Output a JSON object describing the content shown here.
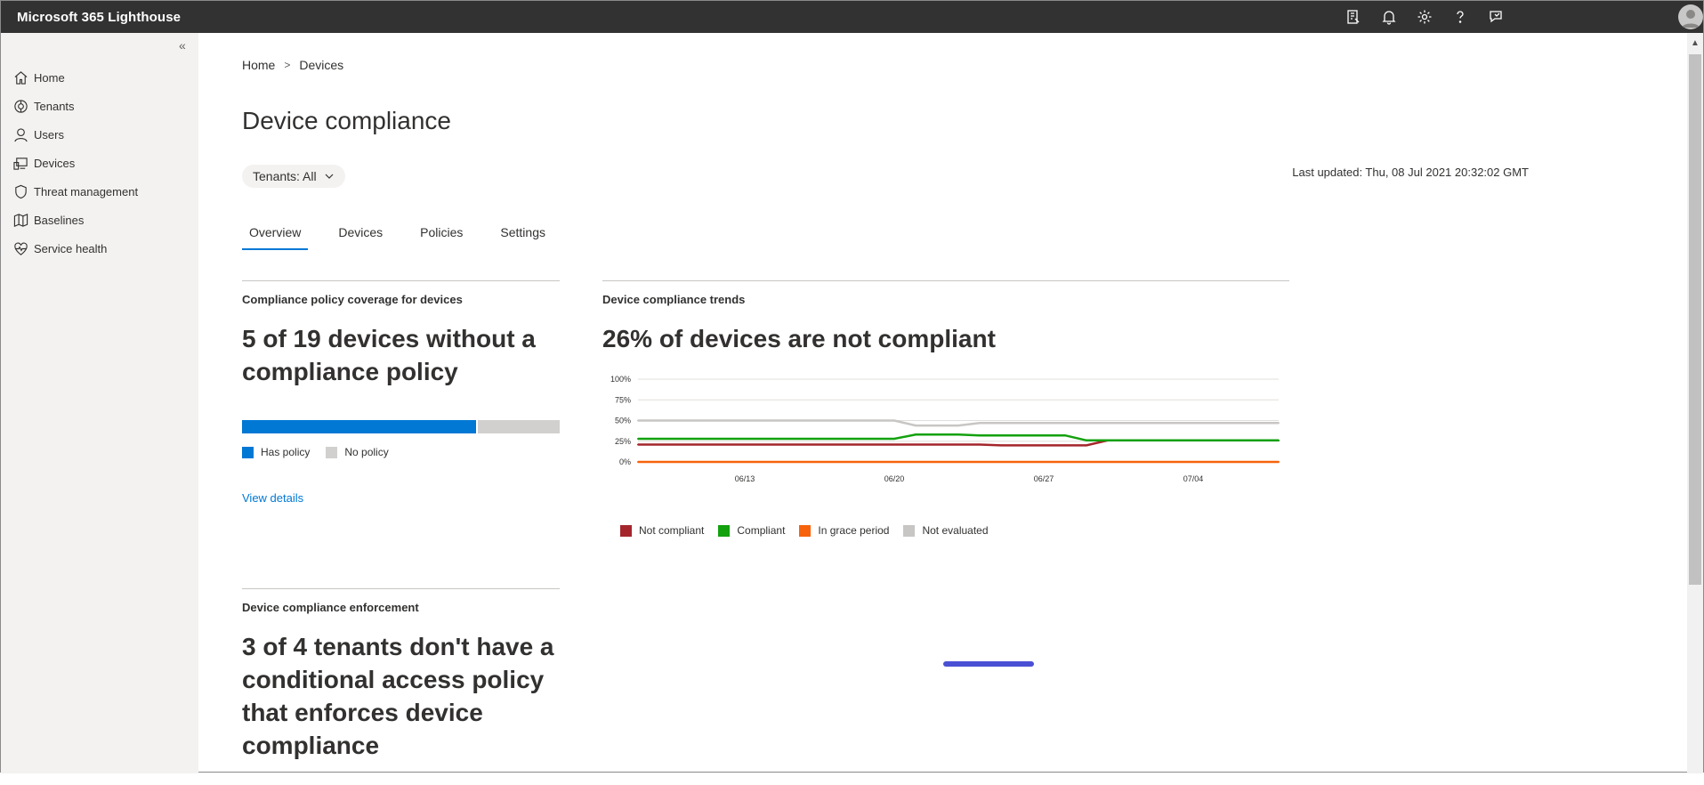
{
  "app": {
    "title": "Microsoft 365 Lighthouse"
  },
  "topbar": {
    "icons": [
      "clipboard-icon",
      "bell-icon",
      "gear-icon",
      "help-icon",
      "feedback-icon"
    ]
  },
  "sidebar": {
    "items": [
      {
        "label": "Home",
        "icon": "home-icon"
      },
      {
        "label": "Tenants",
        "icon": "tenants-icon"
      },
      {
        "label": "Users",
        "icon": "user-icon"
      },
      {
        "label": "Devices",
        "icon": "devices-icon"
      },
      {
        "label": "Threat management",
        "icon": "shield-icon"
      },
      {
        "label": "Baselines",
        "icon": "map-icon"
      },
      {
        "label": "Service health",
        "icon": "heart-icon"
      }
    ]
  },
  "breadcrumb": {
    "home": "Home",
    "current": "Devices"
  },
  "page": {
    "title": "Device compliance"
  },
  "filter": {
    "label": "Tenants: All"
  },
  "last_updated": "Last updated: Thu, 08 Jul 2021 20:32:02 GMT",
  "tabs": [
    "Overview",
    "Devices",
    "Policies",
    "Settings"
  ],
  "coverage_card": {
    "title": "Compliance policy coverage for devices",
    "headline": "5 of 19 devices without a compliance policy",
    "has_policy_fraction": 0.736,
    "legend_has": "Has policy",
    "legend_no": "No policy",
    "link": "View details",
    "colors": {
      "has": "#0078d4",
      "no": "#d2d0ce"
    }
  },
  "trends_card": {
    "title": "Device compliance trends",
    "headline": "26% of devices are not compliant"
  },
  "enforcement_card": {
    "title": "Device compliance enforcement",
    "headline": "3 of 4 tenants don't have a conditional access policy that enforces device compliance"
  },
  "chart_data": {
    "type": "line",
    "x_ticks": [
      "06/13",
      "06/20",
      "06/27",
      "07/04"
    ],
    "y_ticks": [
      "100%",
      "75%",
      "50%",
      "25%",
      "0%"
    ],
    "ylim": [
      0,
      100
    ],
    "x": [
      "06/08",
      "06/09",
      "06/10",
      "06/11",
      "06/12",
      "06/13",
      "06/14",
      "06/15",
      "06/16",
      "06/17",
      "06/18",
      "06/19",
      "06/20",
      "06/21",
      "06/22",
      "06/23",
      "06/24",
      "06/25",
      "06/26",
      "06/27",
      "06/28",
      "06/29",
      "06/30",
      "07/01",
      "07/02",
      "07/03",
      "07/04",
      "07/05",
      "07/06",
      "07/07",
      "07/08"
    ],
    "series": [
      {
        "name": "Not compliant",
        "color": "#a4262c",
        "values": [
          21,
          21,
          21,
          21,
          21,
          21,
          21,
          21,
          21,
          21,
          21,
          21,
          21,
          21,
          21,
          21,
          21,
          20,
          20,
          20,
          20,
          20,
          26,
          26,
          26,
          26,
          26,
          26,
          26,
          26,
          26
        ]
      },
      {
        "name": "Compliant",
        "color": "#13a10e",
        "values": [
          28,
          28,
          28,
          28,
          28,
          28,
          28,
          28,
          28,
          28,
          28,
          28,
          28,
          33,
          33,
          33,
          32,
          32,
          32,
          32,
          32,
          26,
          26,
          26,
          26,
          26,
          26,
          26,
          26,
          26,
          26
        ]
      },
      {
        "name": "In grace period",
        "color": "#f7630c",
        "values": [
          0,
          0,
          0,
          0,
          0,
          0,
          0,
          0,
          0,
          0,
          0,
          0,
          0,
          0,
          0,
          0,
          0,
          0,
          0,
          0,
          0,
          0,
          0,
          0,
          0,
          0,
          0,
          0,
          0,
          0,
          0
        ]
      },
      {
        "name": "Not evaluated",
        "color": "#c8c6c4",
        "values": [
          50,
          50,
          50,
          50,
          50,
          50,
          50,
          50,
          50,
          50,
          50,
          50,
          50,
          44,
          44,
          44,
          47,
          47,
          47,
          47,
          47,
          47,
          47,
          47,
          47,
          47,
          47,
          47,
          47,
          47,
          47
        ]
      }
    ],
    "grid": true,
    "legend_position": "bottom"
  }
}
